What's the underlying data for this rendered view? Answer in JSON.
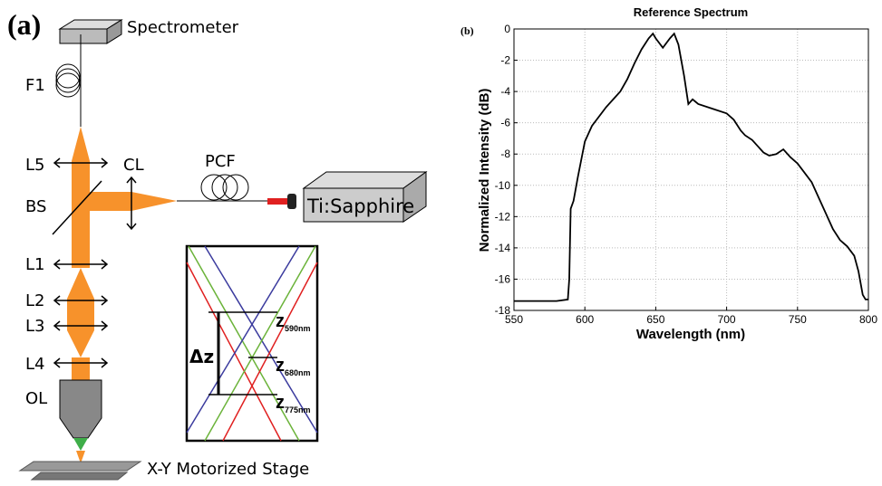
{
  "diagram": {
    "panel_label": "(a)",
    "spectrometer": "Spectrometer",
    "f1": "F1",
    "l5": "L5",
    "cl": "CL",
    "pcf": "PCF",
    "bs": "BS",
    "laser": "Ti:Sapphire",
    "l1": "L1",
    "l2": "L2",
    "l3": "L3",
    "l4": "L4",
    "ol": "OL",
    "stage": "X-Y Motorized Stage",
    "dz": "Δz",
    "z": "z",
    "z1": "590nm",
    "z2": "680nm",
    "z3": "775nm"
  },
  "chart_panel_label": "(b)",
  "chart_data": {
    "type": "line",
    "title": "Reference Spectrum",
    "xlabel": "Wavelength (nm)",
    "ylabel": "Normalized Intensity (dB)",
    "x": [
      550,
      560,
      570,
      580,
      588,
      589,
      590,
      592,
      595,
      600,
      605,
      610,
      615,
      620,
      625,
      630,
      635,
      640,
      645,
      648,
      650,
      655,
      660,
      663,
      666,
      670,
      673,
      676,
      680,
      690,
      700,
      705,
      710,
      713,
      718,
      722,
      726,
      730,
      735,
      740,
      745,
      750,
      755,
      760,
      765,
      770,
      775,
      780,
      785,
      790,
      793,
      796,
      798,
      800
    ],
    "values": [
      -17.4,
      -17.4,
      -17.4,
      -17.4,
      -17.3,
      -16,
      -11.5,
      -11,
      -9.5,
      -7.2,
      -6.2,
      -5.6,
      -5,
      -4.5,
      -4,
      -3.2,
      -2.2,
      -1.3,
      -0.6,
      -0.3,
      -0.6,
      -1.2,
      -0.6,
      -0.3,
      -1,
      -3,
      -4.8,
      -4.5,
      -4.8,
      -5.1,
      -5.4,
      -5.8,
      -6.5,
      -6.8,
      -7.1,
      -7.5,
      -7.9,
      -8.1,
      -8,
      -7.7,
      -8.2,
      -8.6,
      -9.2,
      -9.8,
      -10.8,
      -11.8,
      -12.8,
      -13.5,
      -13.9,
      -14.5,
      -15.5,
      -17,
      -17.3,
      -17.3
    ],
    "color": "#000000",
    "xlim": [
      550,
      800
    ],
    "ylim": [
      -18,
      0
    ],
    "xticks": [
      550,
      600,
      650,
      700,
      750,
      800
    ],
    "yticks": [
      -18,
      -16,
      -14,
      -12,
      -10,
      -8,
      -6,
      -4,
      -2,
      0
    ],
    "grid": true
  }
}
